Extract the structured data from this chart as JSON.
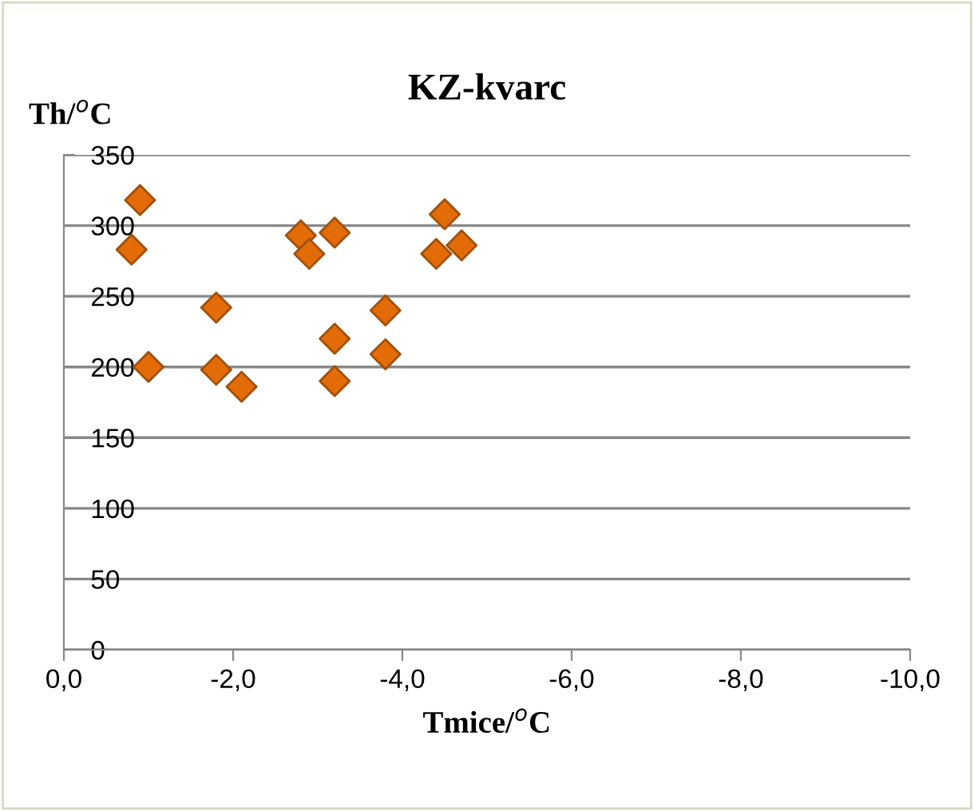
{
  "chart_data": {
    "type": "scatter",
    "title": "KZ-kvarc",
    "xlabel": "Tmice/$^{o}$C",
    "ylabel": "Th/$^{o}$C",
    "series": [
      {
        "color": "#e36c09",
        "x": [
          -0.9,
          -0.8,
          -1.0,
          -1.8,
          -1.8,
          -2.1,
          -2.8,
          -2.9,
          -3.2,
          -3.2,
          -3.2,
          -3.8,
          -3.8,
          -4.5,
          -4.4,
          -4.7
        ],
        "values": [
          318,
          283,
          200,
          242,
          198,
          186,
          293,
          280,
          295,
          220,
          190,
          240,
          209,
          308,
          280,
          286
        ]
      }
    ],
    "xlim": [
      0,
      -10
    ],
    "xticks": [
      {
        "value": 0,
        "label": "0,0"
      },
      {
        "value": -2,
        "label": "-2,0"
      },
      {
        "value": -4,
        "label": "-4,0"
      },
      {
        "value": -6,
        "label": "-6,0"
      },
      {
        "value": -8,
        "label": "-8,0"
      },
      {
        "value": -10,
        "label": "-10,0"
      }
    ],
    "ylim": [
      0,
      350
    ],
    "yticks": [
      0,
      50,
      100,
      150,
      200,
      250,
      300,
      350
    ],
    "grid": "y",
    "marker": "diamond",
    "legend": false
  }
}
